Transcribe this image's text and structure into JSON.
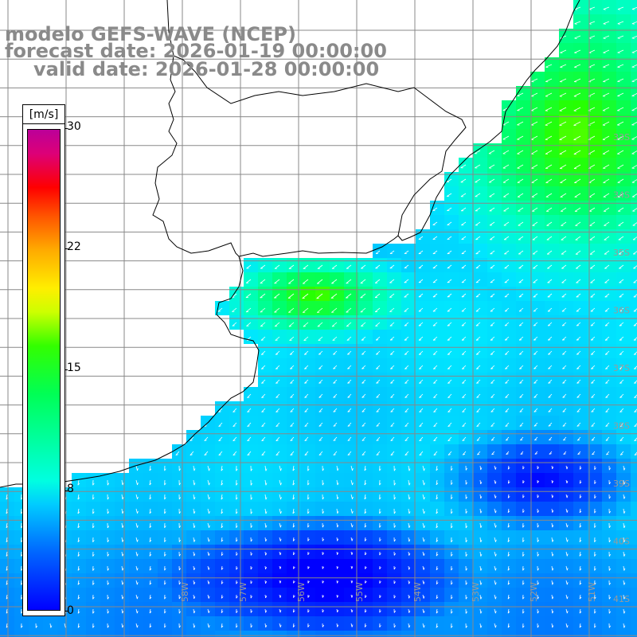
{
  "title": {
    "line1": "modelo GEFS-WAVE (NCEP)",
    "line2": "forecast date: 2026-01-19 00:00:00",
    "line3": "valid date: 2026-01-28 00:00:00"
  },
  "colorbar": {
    "units": "[m/s]",
    "ticks": [
      "30",
      "22",
      "15",
      "8",
      "0"
    ]
  },
  "lat_labels": [
    "33S",
    "34S",
    "35S",
    "36S",
    "37S",
    "38S",
    "39S",
    "40S",
    "41S"
  ],
  "lon_labels": [
    "58W",
    "57W",
    "56W",
    "55W",
    "54W",
    "53W",
    "52W",
    "51W"
  ],
  "colors": {
    "land": "#ffffff",
    "grid": "#888888",
    "coast": "#000000",
    "arrow": "#ffffff"
  }
}
